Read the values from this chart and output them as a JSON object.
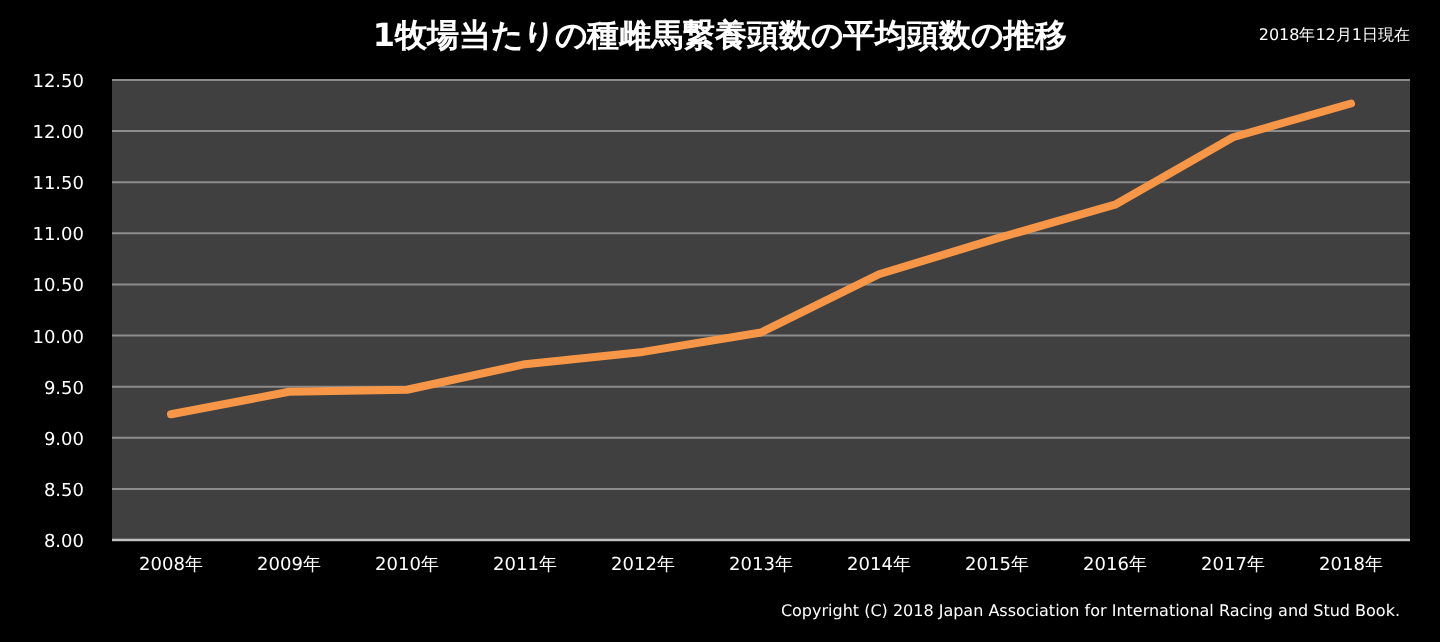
{
  "chart_data": {
    "type": "line",
    "title": "1牧場当たりの種雌馬繋養頭数の平均頭数の推移",
    "subtitle": "2018年12月1日現在",
    "annotations": [
      "Copyright (C) 2018  Japan Association for International Racing and Stud Book."
    ],
    "categories": [
      "2008年",
      "2009年",
      "2010年",
      "2011年",
      "2012年",
      "2013年",
      "2014年",
      "2015年",
      "2016年",
      "2017年",
      "2018年"
    ],
    "series": [
      {
        "color": "#f79646",
        "values": [
          9.23,
          9.45,
          9.47,
          9.72,
          9.84,
          10.03,
          10.6,
          10.95,
          11.28,
          11.94,
          12.27
        ]
      }
    ],
    "ylim": [
      8,
      12.5
    ],
    "yticks": [
      {
        "value": 8,
        "label": "8.00"
      },
      {
        "value": 8.5,
        "label": "8.50"
      },
      {
        "value": 9,
        "label": "9.00"
      },
      {
        "value": 9.5,
        "label": "9.50"
      },
      {
        "value": 10,
        "label": "10.00"
      },
      {
        "value": 10.5,
        "label": "10.50"
      },
      {
        "value": 11,
        "label": "11.00"
      },
      {
        "value": 11.5,
        "label": "11.50"
      },
      {
        "value": 12,
        "label": "12.00"
      },
      {
        "value": 12.5,
        "label": "12.50"
      }
    ],
    "grid": "y"
  }
}
